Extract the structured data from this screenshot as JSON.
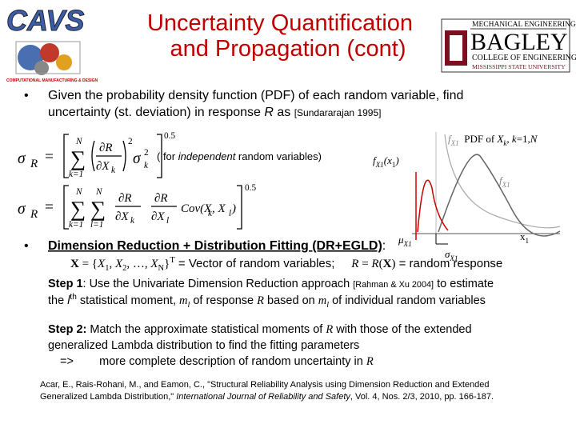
{
  "header": {
    "title_lines": [
      "Uncertainty Quantification",
      "and Propagation (cont)"
    ],
    "left_logo": {
      "name": "CAVS",
      "tagline": "COMPUTATIONAL MANUFACTURING & DESIGN"
    },
    "right_logo": {
      "dept": "MECHANICAL ENGINEERING",
      "name": "BAGLEY",
      "college": "COLLEGE OF ENGINEERING",
      "university": "MISSISSIPPI STATE UNIVERSITY"
    }
  },
  "bullets": [
    "•",
    "•"
  ],
  "bullet1": [
    [
      {
        "t": "Given the probability density function (PDF) of each random variable, find"
      }
    ],
    [
      {
        "t": "uncertainty (st. deviation) in response "
      },
      {
        "t": "R",
        "s": "i"
      },
      {
        "t": " as "
      },
      {
        "t": "[Sundararajan 1995]",
        "s": "small"
      }
    ]
  ],
  "eq1": [
    {
      "t": "σ",
      "s": "serif i big"
    },
    {
      "t": "R",
      "s": "serif i"
    },
    {
      "t": "=",
      "s": "serif big"
    },
    {
      "t": "N",
      "s": "serif i small"
    },
    {
      "t": "∑",
      "s": "serif huge"
    },
    {
      "t": "k=1",
      "s": "serif i small"
    },
    {
      "t": "∂R",
      "s": "serif i"
    },
    {
      "t": "∂X",
      "s": "serif i"
    },
    {
      "t": "k",
      "s": "serif i small"
    },
    {
      "t": "2",
      "s": "serif small"
    },
    {
      "t": "σ",
      "s": "serif i big"
    },
    {
      "t": "2",
      "s": "serif small"
    },
    {
      "t": "k",
      "s": "serif i small"
    },
    {
      "t": "0.5",
      "s": "serif small"
    }
  ],
  "note": [
    {
      "t": "( for "
    },
    {
      "t": "independent",
      "s": "i"
    },
    {
      "t": " random variables)"
    }
  ],
  "eq2": [
    {
      "t": "σ",
      "s": "serif i big"
    },
    {
      "t": "R",
      "s": "serif i"
    },
    {
      "t": "=",
      "s": "serif big"
    },
    {
      "t": "N",
      "s": "serif i small"
    },
    {
      "t": "∑",
      "s": "serif huge"
    },
    {
      "t": "k=1",
      "s": "serif i small"
    },
    {
      "t": "N",
      "s": "serif i small"
    },
    {
      "t": "∑",
      "s": "serif huge"
    },
    {
      "t": "l=1",
      "s": "serif i small"
    },
    {
      "t": "∂R",
      "s": "serif i"
    },
    {
      "t": "∂X",
      "s": "serif i"
    },
    {
      "t": "k",
      "s": "serif i small"
    },
    {
      "t": "∂R",
      "s": "serif i"
    },
    {
      "t": "∂X",
      "s": "serif i"
    },
    {
      "t": "l",
      "s": "serif i small"
    },
    {
      "t": "Cov(X",
      "s": "serif i"
    },
    {
      "t": "k",
      "s": "serif i small"
    },
    {
      "t": ", X",
      "s": "serif i"
    },
    {
      "t": "l",
      "s": "serif i small"
    },
    {
      "t": ")",
      "s": "serif i"
    },
    {
      "t": "0.5",
      "s": "serif small"
    }
  ],
  "figure": {
    "legend": [
      {
        "t": "f",
        "s": "serif i gray"
      },
      {
        "t": "X1",
        "s": "serif i sub gray"
      },
      {
        "t": "  PDF of ",
        "s": "serif"
      },
      {
        "t": "X",
        "s": "serif i"
      },
      {
        "t": "k",
        "s": "serif i sub"
      },
      {
        "t": ", ",
        "s": "serif"
      },
      {
        "t": "k",
        "s": "serif i"
      },
      {
        "t": "=1,",
        "s": "serif"
      },
      {
        "t": "N",
        "s": "serif i"
      }
    ],
    "y_label": [
      {
        "t": "f",
        "s": "serif i"
      },
      {
        "t": "X1",
        "s": "serif i sub"
      },
      {
        "t": "(x",
        "s": "serif i"
      },
      {
        "t": "1",
        "s": "serif sub"
      },
      {
        "t": ")",
        "s": "serif i"
      }
    ],
    "curve_label": [
      {
        "t": "f",
        "s": "serif i gray"
      },
      {
        "t": "X1",
        "s": "serif i sub gray"
      }
    ],
    "x_label": [
      {
        "t": "x",
        "s": "serif"
      },
      {
        "t": "1",
        "s": "serif sub"
      }
    ],
    "mean_label": [
      {
        "t": "μ",
        "s": "serif i"
      },
      {
        "t": "X1",
        "s": "serif i sub"
      }
    ],
    "sd_label": [
      {
        "t": "σ",
        "s": "serif i"
      },
      {
        "t": "X1",
        "s": "serif i sub"
      }
    ]
  },
  "bullet2": [
    {
      "t": "Dimension Reduction + Distribution Fitting (DR+EGLD)",
      "s": "bu"
    },
    {
      "t": ":"
    }
  ],
  "vector_line": [
    {
      "t": "X",
      "s": "serif b"
    },
    {
      "t": " = {",
      "s": "serif"
    },
    {
      "t": "X",
      "s": "serif i"
    },
    {
      "t": "1",
      "s": "serif sub"
    },
    {
      "t": ", ",
      "s": "serif"
    },
    {
      "t": "X",
      "s": "serif i"
    },
    {
      "t": "2",
      "s": "serif sub"
    },
    {
      "t": ", …, ",
      "s": "serif"
    },
    {
      "t": "X",
      "s": "serif i"
    },
    {
      "t": "N",
      "s": "serif sub"
    },
    {
      "t": "}",
      "s": "serif"
    },
    {
      "t": "T",
      "s": "serif sup"
    },
    {
      "t": " = Vector of random variables;     "
    },
    {
      "t": "R",
      "s": "serif i"
    },
    {
      "t": " = ",
      "s": "serif"
    },
    {
      "t": "R",
      "s": "serif i"
    },
    {
      "t": "(",
      "s": "serif"
    },
    {
      "t": "X",
      "s": "serif b"
    },
    {
      "t": ")",
      "s": "serif"
    },
    {
      "t": " = random response"
    }
  ],
  "step1": [
    [
      {
        "t": "Step 1",
        "s": "b"
      },
      {
        "t": ": Use the Univariate Dimension Reduction approach "
      },
      {
        "t": "[Rahman & Xu 2004]",
        "s": "small"
      },
      {
        "t": " to estimate"
      }
    ],
    [
      {
        "t": "the "
      },
      {
        "t": "l",
        "s": "i"
      },
      {
        "t": "th",
        "s": "sup"
      },
      {
        "t": " statistical moment, "
      },
      {
        "t": "m",
        "s": "serif i"
      },
      {
        "t": "l",
        "s": "serif i sub"
      },
      {
        "t": " of response "
      },
      {
        "t": "R",
        "s": "serif i"
      },
      {
        "t": " based on "
      },
      {
        "t": "m",
        "s": "serif i"
      },
      {
        "t": "l",
        "s": "serif i sub"
      },
      {
        "t": " of individual random variables"
      }
    ]
  ],
  "step2": [
    [
      {
        "t": "Step 2:",
        "s": "b"
      },
      {
        "t": " Match the approximate statistical moments of "
      },
      {
        "t": "R",
        "s": "serif i"
      },
      {
        "t": " with those of the extended"
      }
    ],
    [
      {
        "t": "generalized Lambda distribution to find the fitting parameters"
      }
    ],
    [
      {
        "t": "=>        more complete description of random uncertainty in "
      },
      {
        "t": "R",
        "s": "serif i"
      }
    ]
  ],
  "reference": [
    [
      {
        "t": "Acar, E., Rais-Rohani, M., and Eamon, C., \"Structural Reliability Analysis using Dimension Reduction and Extended"
      }
    ],
    [
      {
        "t": "Generalized Lambda Distribution,\" "
      },
      {
        "t": "International Journal of Reliability and Safety",
        "s": "i"
      },
      {
        "t": ", Vol. 4, Nos. 2/3, 2010, pp. 166-187."
      }
    ]
  ]
}
